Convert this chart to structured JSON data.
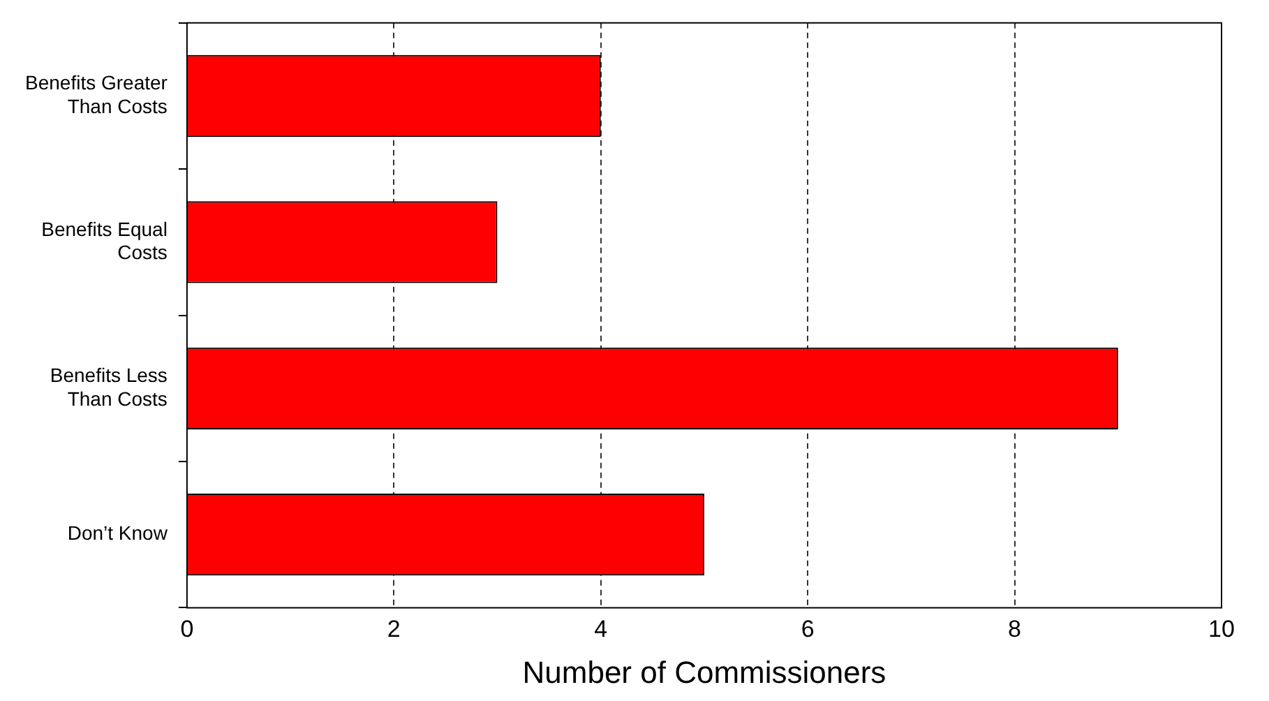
{
  "chart_data": {
    "type": "bar",
    "orientation": "horizontal",
    "xlabel": "Number of Commissioners",
    "categories": [
      "Benefits Greater Than Costs",
      "Benefits Equal Costs",
      "Benefits Less Than Costs",
      "Don’t Know"
    ],
    "values": [
      4,
      3,
      9,
      5
    ],
    "color": "#ff0000",
    "xlim": [
      0,
      10
    ],
    "xticks": [
      0,
      2,
      4,
      6,
      8,
      10
    ],
    "grid": "x",
    "line_style": "dashed",
    "legend": false
  }
}
